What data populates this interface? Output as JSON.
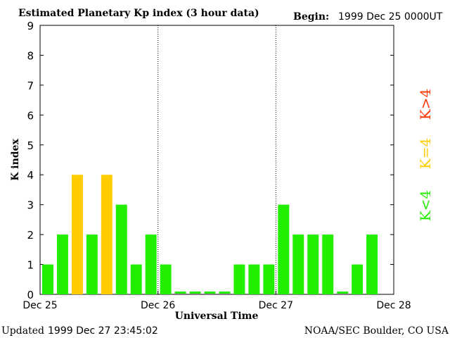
{
  "header": {
    "title": "Estimated Planetary Kp index (3 hour data)",
    "begin_label": "Begin:",
    "begin_value": "1999 Dec 25 0000UT"
  },
  "footer": {
    "updated_label": "Updated",
    "updated_value": "1999 Dec 27 23:45:02",
    "source": "NOAA/SEC Boulder, CO USA"
  },
  "legend": [
    {
      "label": "K>4",
      "color": "#ff3300"
    },
    {
      "label": "K=4",
      "color": "#ffcc00"
    },
    {
      "label": "K<4",
      "color": "#22ee00"
    }
  ],
  "chart_data": {
    "type": "bar",
    "title": "Estimated Planetary Kp index (3 hour data)",
    "xlabel": "Universal Time",
    "ylabel": "K index",
    "ylim": [
      0,
      9
    ],
    "yticks": [
      0,
      1,
      2,
      3,
      4,
      5,
      6,
      7,
      8,
      9
    ],
    "xticks": [
      "Dec 25",
      "Dec 26",
      "Dec 27",
      "Dec 28"
    ],
    "interval_hours": 3,
    "values": [
      1,
      2,
      4,
      2,
      4,
      3,
      1,
      2,
      1,
      0,
      0,
      0,
      0,
      1,
      1,
      1,
      3,
      2,
      2,
      2,
      0,
      1,
      2
    ],
    "colors": {
      "low": "#22ee00",
      "equal": "#ffcc00",
      "high": "#ff3300"
    }
  }
}
